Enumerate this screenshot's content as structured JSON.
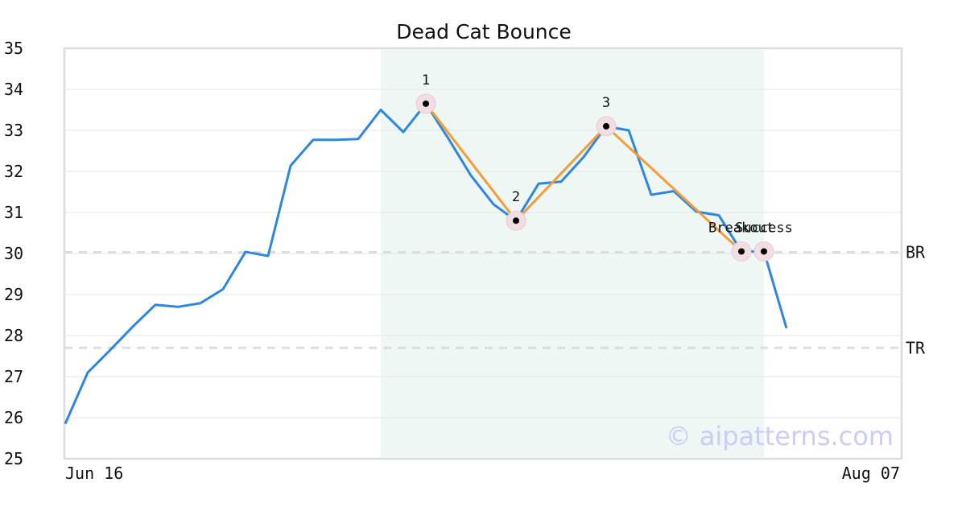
{
  "chart_data": {
    "type": "line",
    "title": "Dead Cat Bounce",
    "ylim": [
      25,
      35
    ],
    "yticks": [
      25,
      26,
      27,
      28,
      29,
      30,
      31,
      32,
      33,
      34,
      35
    ],
    "x_tick_labels": [
      {
        "index": 0,
        "label": "Jun 16"
      },
      {
        "index": 37,
        "label": "Aug 07"
      }
    ],
    "x_range": [
      0,
      37
    ],
    "grid": "horizontal",
    "series": [
      {
        "color": "#2e86de",
        "values": [
          25.85,
          27.1,
          27.65,
          28.22,
          28.75,
          28.7,
          28.79,
          29.13,
          30.04,
          29.94,
          32.14,
          32.77,
          32.77,
          32.79,
          33.5,
          32.96,
          33.65,
          32.8,
          31.9,
          31.2,
          30.8,
          31.7,
          31.75,
          32.35,
          33.1,
          33.0,
          31.43,
          31.52,
          31.02,
          30.93,
          30.05,
          30.05,
          28.18
        ]
      }
    ],
    "pattern_line": {
      "color": "#f39c38",
      "points": [
        {
          "x": 16,
          "y": 33.65
        },
        {
          "x": 20,
          "y": 30.8
        },
        {
          "x": 24,
          "y": 33.1
        },
        {
          "x": 30,
          "y": 30.05
        }
      ]
    },
    "highlight_region": {
      "x_start": 14,
      "x_end": 31,
      "color": "#eef7f3"
    },
    "pivot_points": [
      {
        "x": 16,
        "y": 33.65,
        "label": "1"
      },
      {
        "x": 20,
        "y": 30.8,
        "label": "2"
      },
      {
        "x": 24,
        "y": 33.1,
        "label": "3"
      },
      {
        "x": 30,
        "y": 30.05,
        "label": "Breakout"
      },
      {
        "x": 31,
        "y": 30.05,
        "label": "Success"
      }
    ],
    "levels": [
      {
        "label": "BR",
        "value": 30.03
      },
      {
        "label": "TR",
        "value": 27.7
      }
    ]
  },
  "watermark": "© aipatterns.com"
}
